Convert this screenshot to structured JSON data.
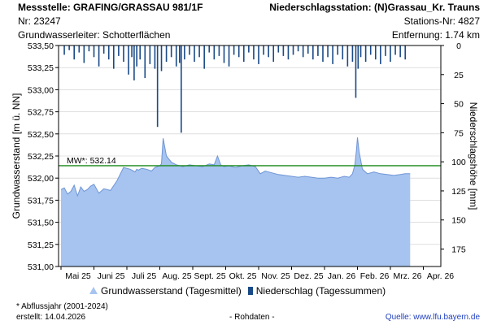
{
  "header": {
    "left_line1": "Messstelle: GRAFING/GRASSAU 981/1F",
    "left_line2": "Nr: 23247",
    "left_line3": "Grundwasserleiter:   Schotterflächen",
    "right_line1": "Niederschlagsstation: (N)Grassau_Kr. Trauns",
    "right_line2": "Stations-Nr: 4827",
    "right_line3": "Entfernung: 1.74 km"
  },
  "legend": {
    "groundwater": "Grundwasserstand (Tagesmittel)",
    "precip": "Niederschlag (Tagessummen)"
  },
  "footer": {
    "note": "* Abflussjahr (2001-2024)",
    "created": "erstellt:  14.04.2026",
    "raw": "- Rohdaten -",
    "source": "Quelle:  www.lfu.bayern.de"
  },
  "colors": {
    "area_fill": "#a6c4ef",
    "area_line": "#6f95d6",
    "precip_bars": "#1a4a87",
    "mean_line": "#1a8a1a",
    "grid": "#cccccc"
  },
  "chart_data": {
    "type": "area",
    "title": "",
    "ylabel": "Grundwasserstand [m ü. NN]",
    "y2label": "Niederschlagshöhe [mm]",
    "ylim": [
      531.0,
      533.5
    ],
    "y2lim": [
      0,
      190
    ],
    "y_ticks": [
      "531,00",
      "531,25",
      "531,50",
      "531,75",
      "532,00",
      "532,25",
      "532,50",
      "532,75",
      "533,00",
      "533,25",
      "533,50"
    ],
    "y2_ticks": [
      "0",
      "25",
      "50",
      "75",
      "100",
      "125",
      "150",
      "175"
    ],
    "x_ticks": [
      "Mai 25",
      "Juni 25",
      "Juli 25",
      "Aug. 25",
      "Sept. 25",
      "Okt. 25",
      "Nov. 25",
      "Dez. 25",
      "Jan. 26",
      "Feb. 26",
      "Mrz. 26",
      "Apr. 26"
    ],
    "grid": true,
    "mean_label": "MW*: 532.14",
    "mean_value": 532.14,
    "groundwater": {
      "name": "Grundwasserstand (Tagesmittel)",
      "x_month": [
        0,
        0.1,
        0.2,
        0.3,
        0.4,
        0.5,
        0.6,
        0.7,
        0.8,
        0.9,
        1.0,
        1.15,
        1.3,
        1.5,
        1.7,
        1.9,
        2.1,
        2.2,
        2.25,
        2.3,
        2.35,
        2.45,
        2.6,
        2.75,
        2.85,
        3.0,
        3.05,
        3.1,
        3.2,
        3.35,
        3.5,
        3.7,
        3.9,
        4.1,
        4.3,
        4.5,
        4.65,
        4.75,
        4.85,
        4.95,
        5.1,
        5.3,
        5.5,
        5.7,
        5.9,
        6.05,
        6.2,
        6.4,
        6.6,
        6.8,
        7.0,
        7.2,
        7.4,
        7.6,
        7.8,
        8.0,
        8.2,
        8.4,
        8.6,
        8.75,
        8.85,
        8.92,
        8.97,
        9.0,
        9.05,
        9.15,
        9.3,
        9.5,
        9.7,
        9.9,
        10.1,
        10.3,
        10.45,
        10.6
      ],
      "level": [
        531.87,
        531.89,
        531.82,
        531.85,
        531.92,
        531.8,
        531.9,
        531.85,
        531.87,
        531.91,
        531.93,
        531.83,
        531.88,
        531.86,
        531.97,
        532.12,
        532.1,
        532.08,
        532.07,
        532.1,
        532.09,
        532.11,
        532.1,
        532.08,
        532.12,
        532.14,
        532.16,
        532.45,
        532.25,
        532.18,
        532.15,
        532.13,
        532.15,
        532.14,
        532.13,
        532.16,
        532.15,
        532.25,
        532.15,
        532.13,
        532.14,
        532.12,
        532.14,
        532.15,
        532.13,
        532.05,
        532.08,
        532.06,
        532.04,
        532.03,
        532.02,
        532.01,
        532.02,
        532.01,
        532.0,
        532.0,
        532.01,
        532.0,
        532.02,
        532.01,
        532.05,
        532.15,
        532.32,
        532.46,
        532.3,
        532.1,
        532.05,
        532.07,
        532.05,
        532.04,
        532.03,
        532.04,
        532.05,
        532.05
      ]
    },
    "precipitation": {
      "name": "Niederschlag (Tagessummen)",
      "x_month": [
        0.1,
        0.25,
        0.4,
        0.55,
        0.7,
        0.85,
        1.0,
        1.15,
        1.3,
        1.45,
        1.6,
        1.75,
        1.9,
        2.05,
        2.15,
        2.22,
        2.3,
        2.4,
        2.55,
        2.7,
        2.85,
        2.93,
        3.05,
        3.2,
        3.35,
        3.5,
        3.6,
        3.65,
        3.75,
        3.9,
        4.05,
        4.2,
        4.35,
        4.5,
        4.65,
        4.8,
        4.95,
        5.1,
        5.25,
        5.4,
        5.55,
        5.7,
        5.85,
        6.0,
        6.15,
        6.3,
        6.45,
        6.6,
        6.75,
        6.9,
        7.05,
        7.2,
        7.35,
        7.5,
        7.65,
        7.8,
        7.95,
        8.1,
        8.25,
        8.4,
        8.55,
        8.7,
        8.85,
        8.95,
        9.02,
        9.1,
        9.25,
        9.4,
        9.55,
        9.7,
        9.85,
        10.0,
        10.15,
        10.3,
        10.45
      ],
      "mm": [
        8,
        4,
        12,
        6,
        15,
        5,
        10,
        18,
        7,
        12,
        20,
        9,
        14,
        25,
        10,
        30,
        18,
        12,
        28,
        16,
        20,
        70,
        22,
        14,
        10,
        18,
        15,
        75,
        12,
        8,
        14,
        10,
        20,
        6,
        12,
        9,
        15,
        18,
        8,
        10,
        14,
        6,
        12,
        16,
        8,
        10,
        14,
        6,
        9,
        12,
        8,
        5,
        10,
        7,
        12,
        9,
        14,
        10,
        16,
        8,
        12,
        18,
        14,
        45,
        20,
        10,
        14,
        8,
        12,
        16,
        9,
        14,
        8,
        10,
        12
      ]
    }
  }
}
